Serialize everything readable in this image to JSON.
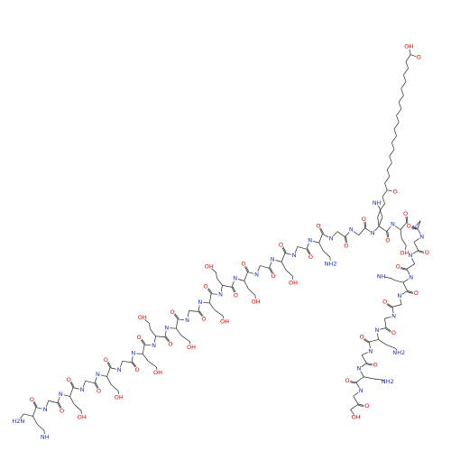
{
  "n_terminus": "H2N",
  "residues": [
    {
      "o": "O",
      "n": "N",
      "side": "NH"
    },
    {
      "o": "O",
      "n": "N"
    },
    {
      "o": "O",
      "n": "N",
      "side": "OH"
    },
    {
      "o": "O",
      "n": "N"
    },
    {
      "o": "O",
      "n": "N",
      "side": "OH"
    },
    {
      "o": "O",
      "n": "N"
    },
    {
      "o": "O",
      "n": "N",
      "side": "OH"
    },
    {
      "o": "O",
      "n": "N",
      "side": "OH"
    },
    {
      "o": "O",
      "n": "N",
      "side": "OH"
    },
    {
      "o": "O",
      "n": "N"
    },
    {
      "o": "O",
      "n": "N",
      "side": "OH"
    },
    {
      "o": "O",
      "n": "N",
      "side": "OH"
    },
    {
      "o": "O",
      "n": "N",
      "side": "OH"
    },
    {
      "o": "O",
      "n": "N"
    },
    {
      "o": "O",
      "n": "N",
      "side": "OH"
    },
    {
      "o": "O",
      "n": "N"
    },
    {
      "o": "O",
      "n": "N",
      "side": "NH2"
    },
    {
      "o": "O",
      "n": "N"
    },
    {
      "o": "O",
      "n": "N"
    },
    {
      "o": "O",
      "n": "N",
      "side": "NH"
    },
    {
      "o": "O",
      "n": "N",
      "side": "OH"
    },
    {
      "o": "O",
      "n": "N"
    },
    {
      "o": "O",
      "n": "N"
    },
    {
      "o": "O",
      "n": "N"
    },
    {
      "o": "O",
      "n": "N",
      "side": "NH"
    },
    {
      "o": "O",
      "n": "N"
    },
    {
      "o": "O",
      "n": "N"
    },
    {
      "o": "O",
      "n": "N",
      "side": "NH2"
    },
    {
      "o": "O",
      "n": "N"
    },
    {
      "o": "O",
      "n": "N",
      "side": "NH2"
    },
    {
      "o": "O",
      "n": "N"
    }
  ],
  "c_terminus": "OH",
  "fatty_acid": {
    "amide_o": "O",
    "acid_o": "O",
    "acid_oh": "OH"
  }
}
